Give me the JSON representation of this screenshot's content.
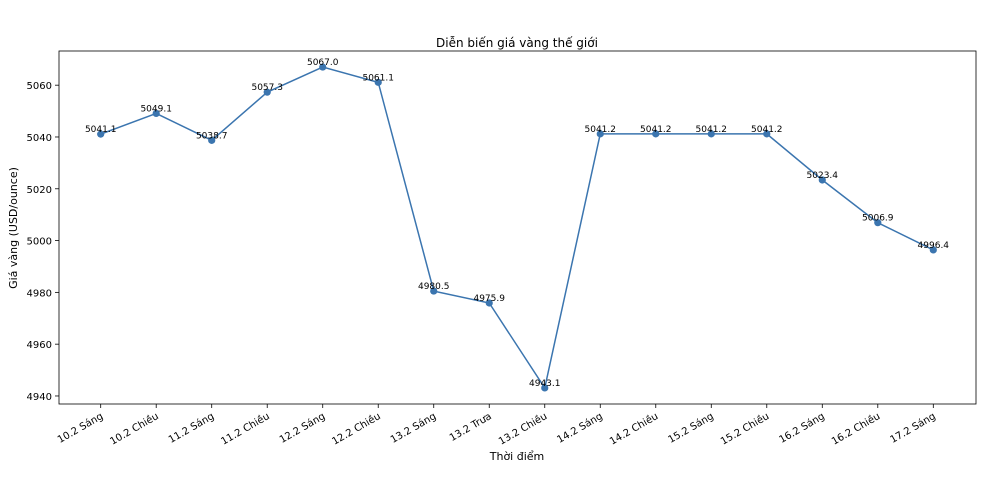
{
  "chart_data": {
    "type": "line",
    "title": "Diễn biến giá vàng thế giới",
    "xlabel": "Thời điểm",
    "ylabel": "Giá vàng (USD/ounce)",
    "categories": [
      "10.2 Sáng",
      "10.2 Chiều",
      "11.2 Sáng",
      "11.2 Chiều",
      "12.2 Sáng",
      "12.2 Chiều",
      "13.2 Sáng",
      "13.2 Trưa",
      "13.2 Chiều",
      "14.2 Sáng",
      "14.2 Chiều",
      "15.2 Sáng",
      "15.2 Chiều",
      "16.2 Sáng",
      "16.2 Chiều",
      "17.2 Sáng"
    ],
    "values": [
      5041.1,
      5049.1,
      5038.7,
      5057.3,
      5067.0,
      5061.1,
      4980.5,
      4975.9,
      4943.1,
      5041.2,
      5041.2,
      5041.2,
      5041.2,
      5023.4,
      5006.9,
      4996.4
    ],
    "value_labels": [
      "5041.1",
      "5049.1",
      "5038.7",
      "5057.3",
      "5067.0",
      "5061.1",
      "4980.5",
      "4975.9",
      "4943.1",
      "5041.2",
      "5041.2",
      "5041.2",
      "5041.2",
      "5023.4",
      "5006.9",
      "4996.4"
    ],
    "yticks": [
      4940,
      4960,
      4980,
      5000,
      5020,
      5040,
      5060
    ],
    "ylim": [
      4936.9,
      5073.2
    ],
    "grid": false,
    "line_color": "#3b75af",
    "marker_color": "#3b75af"
  }
}
